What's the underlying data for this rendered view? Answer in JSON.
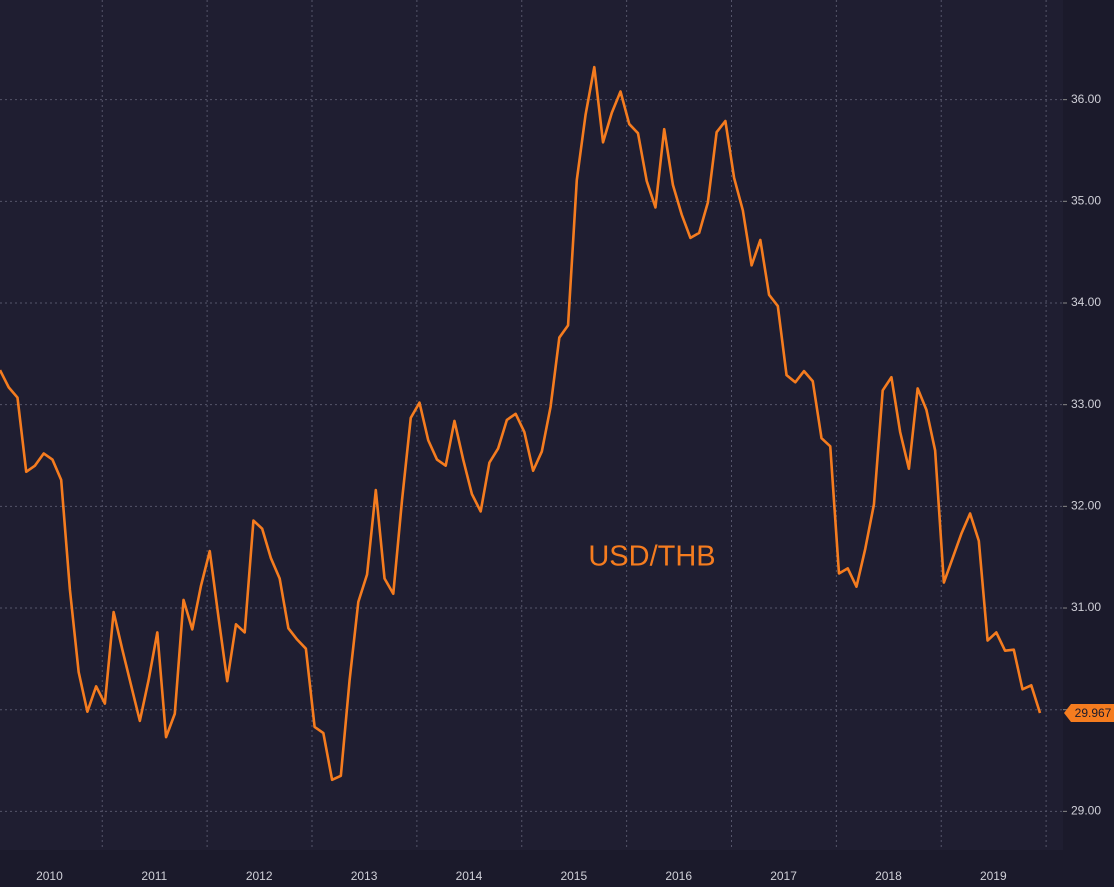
{
  "chart_data": {
    "type": "line",
    "categories": [
      null,
      null,
      null,
      null,
      null,
      null,
      "2010",
      null,
      null,
      null,
      null,
      null,
      null,
      null,
      null,
      null,
      null,
      null,
      "2011",
      null,
      null,
      null,
      null,
      null,
      null,
      null,
      null,
      null,
      null,
      null,
      "2012",
      null,
      null,
      null,
      null,
      null,
      null,
      null,
      null,
      null,
      null,
      null,
      "2013",
      null,
      null,
      null,
      null,
      null,
      null,
      null,
      null,
      null,
      null,
      null,
      "2014",
      null,
      null,
      null,
      null,
      null,
      null,
      null,
      null,
      null,
      null,
      null,
      "2015",
      null,
      null,
      null,
      null,
      null,
      null,
      null,
      null,
      null,
      null,
      null,
      "2016",
      null,
      null,
      null,
      null,
      null,
      null,
      null,
      null,
      null,
      null,
      null,
      "2017",
      null,
      null,
      null,
      null,
      null,
      null,
      null,
      null,
      null,
      null,
      null,
      "2018",
      null,
      null,
      null,
      null,
      null,
      null,
      null,
      null,
      null,
      null,
      null,
      "2019",
      null,
      null,
      null,
      null,
      null
    ],
    "series": [
      {
        "name": "USD/THB",
        "color": "#f57c1f",
        "values": [
          33.34,
          33.17,
          33.07,
          32.34,
          32.4,
          32.52,
          32.46,
          32.26,
          31.18,
          30.37,
          29.98,
          30.23,
          30.06,
          30.96,
          30.59,
          30.24,
          29.89,
          30.29,
          30.76,
          29.73,
          29.96,
          31.08,
          30.79,
          31.22,
          31.56,
          30.91,
          30.28,
          30.84,
          30.76,
          31.86,
          31.78,
          31.49,
          31.29,
          30.8,
          30.69,
          30.6,
          29.83,
          29.77,
          29.31,
          29.35,
          30.29,
          31.06,
          31.33,
          32.16,
          31.29,
          31.14,
          32.06,
          32.87,
          33.02,
          32.65,
          32.46,
          32.4,
          32.84,
          32.46,
          32.12,
          31.95,
          32.43,
          32.57,
          32.85,
          32.91,
          32.73,
          32.35,
          32.54,
          32.98,
          33.66,
          33.78,
          35.21,
          35.85,
          36.32,
          35.58,
          35.87,
          36.08,
          35.76,
          35.67,
          35.2,
          34.94,
          35.71,
          35.16,
          34.87,
          34.64,
          34.69,
          34.99,
          35.68,
          35.79,
          35.23,
          34.91,
          34.37,
          34.62,
          34.08,
          33.97,
          33.29,
          33.22,
          33.33,
          33.23,
          32.67,
          32.59,
          31.34,
          31.39,
          31.21,
          31.58,
          32.02,
          33.14,
          33.27,
          32.73,
          32.37,
          33.16,
          32.95,
          32.55,
          31.25,
          31.49,
          31.73,
          31.93,
          31.66,
          30.68,
          30.76,
          30.58,
          30.59,
          30.2,
          30.24,
          29.967
        ]
      }
    ],
    "ylim": [
      28.62,
      36.98
    ],
    "yticks": [
      {
        "value": 29,
        "label": "29.00"
      },
      {
        "value": 30,
        "label": "30.00"
      },
      {
        "value": 31,
        "label": "31.00"
      },
      {
        "value": 32,
        "label": "32.00"
      },
      {
        "value": 33,
        "label": "33.00"
      },
      {
        "value": 34,
        "label": "34.00"
      },
      {
        "value": 35,
        "label": "35.00"
      },
      {
        "value": 36,
        "label": "36.00"
      }
    ],
    "grid": true
  }
}
